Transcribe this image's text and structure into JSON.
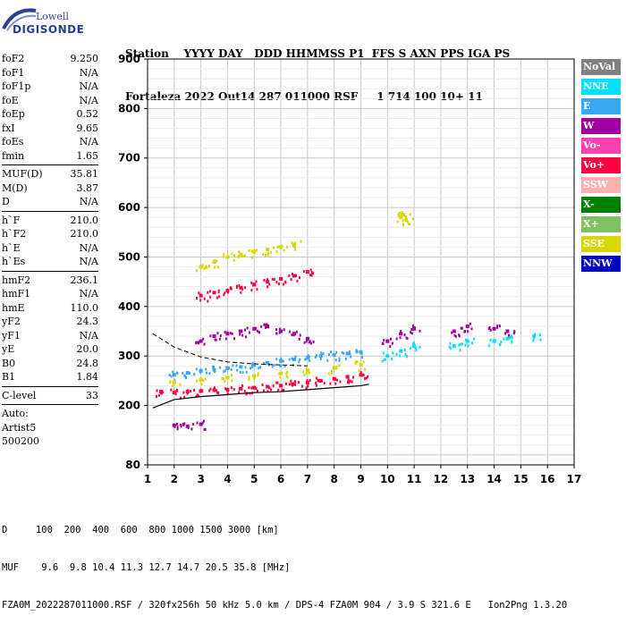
{
  "logo": {
    "line1": "Lowell",
    "line2": "DIGISONDE"
  },
  "header": {
    "labels": "Station    YYYY DAY   DDD HHMMSS P1  FFS S AXN PPS IGA PS",
    "values": "Fortaleza 2022 Out14 287 011000 RSF     1 714 100 10+ 11"
  },
  "params": {
    "group1": [
      {
        "label": "foF2",
        "value": "9.250"
      },
      {
        "label": "foF1",
        "value": "N/A"
      },
      {
        "label": "foF1p",
        "value": "N/A"
      },
      {
        "label": "foE",
        "value": "N/A"
      },
      {
        "label": "foEp",
        "value": "0.52"
      },
      {
        "label": "fxI",
        "value": "9.65"
      },
      {
        "label": "foEs",
        "value": "N/A"
      },
      {
        "label": "fmin",
        "value": "1.65"
      }
    ],
    "group2": [
      {
        "label": "MUF(D)",
        "value": "35.81"
      },
      {
        "label": "M(D)",
        "value": "3.87"
      },
      {
        "label": "D",
        "value": "N/A"
      }
    ],
    "group3": [
      {
        "label": "h`F",
        "value": "210.0"
      },
      {
        "label": "h`F2",
        "value": "210.0"
      },
      {
        "label": "h`E",
        "value": "N/A"
      },
      {
        "label": "h`Es",
        "value": "N/A"
      }
    ],
    "group4": [
      {
        "label": "hmF2",
        "value": "236.1"
      },
      {
        "label": "hmF1",
        "value": "N/A"
      },
      {
        "label": "hmE",
        "value": "110.0"
      },
      {
        "label": "yF2",
        "value": "24.3"
      },
      {
        "label": "yF1",
        "value": "N/A"
      },
      {
        "label": "yE",
        "value": "20.0"
      },
      {
        "label": "B0",
        "value": "24.8"
      },
      {
        "label": "B1",
        "value": "1.84"
      }
    ],
    "group5": [
      {
        "label": "C-level",
        "value": "33"
      }
    ],
    "auto_label": "Auto:",
    "scaler": "Artist5",
    "code": "500200"
  },
  "legend": [
    {
      "label": "NoVal",
      "color": "#808080"
    },
    {
      "label": "NNE",
      "color": "#00e0ff"
    },
    {
      "label": "E",
      "color": "#3aa8f0"
    },
    {
      "label": "W",
      "color": "#a000a0"
    },
    {
      "label": "Vo-",
      "color": "#ff40b0"
    },
    {
      "label": "Vo+",
      "color": "#ff0040"
    },
    {
      "label": "SSW",
      "color": "#ffb0b0"
    },
    {
      "label": "X-",
      "color": "#008000"
    },
    {
      "label": "X+",
      "color": "#80c060"
    },
    {
      "label": "SSE",
      "color": "#d8d800"
    },
    {
      "label": "NNW",
      "color": "#0000c0"
    }
  ],
  "footer": {
    "line1": "D     100  200  400  600  800 1000 1500 3000 [km]",
    "line2": "MUF    9.6  9.8 10.4 11.3 12.7 14.7 20.5 35.8 [MHz]",
    "line3": "FZA0M_2022287011000.RSF / 320fx256h 50 kHz 5.0 km / DPS-4 FZA0M 904 / 3.9 S 321.6 E   Ion2Png 1.3.20"
  },
  "chart_data": {
    "type": "scatter",
    "title": "",
    "xlabel": "",
    "ylabel": "",
    "xlim": [
      1,
      17
    ],
    "ylim": [
      80,
      900
    ],
    "xticks": [
      1,
      2,
      3,
      4,
      5,
      6,
      7,
      8,
      9,
      10,
      11,
      12,
      13,
      14,
      15,
      16,
      17
    ],
    "yticks": [
      80,
      200,
      300,
      400,
      500,
      600,
      700,
      800,
      900
    ],
    "grid": true,
    "series": [
      {
        "color": "#ff0040",
        "points": [
          [
            1.5,
            228
          ],
          [
            2.0,
            226
          ],
          [
            2.5,
            228
          ],
          [
            3.0,
            229
          ],
          [
            3.5,
            231
          ],
          [
            4.0,
            232
          ],
          [
            4.5,
            234
          ],
          [
            5.0,
            236
          ],
          [
            5.5,
            238
          ],
          [
            6.0,
            240
          ],
          [
            6.5,
            243
          ],
          [
            7.0,
            246
          ],
          [
            7.5,
            250
          ],
          [
            8.0,
            254
          ],
          [
            8.5,
            258
          ],
          [
            9.0,
            262
          ]
        ]
      },
      {
        "color": "#3aa8f0",
        "points": [
          [
            2.0,
            262
          ],
          [
            2.5,
            266
          ],
          [
            3.0,
            270
          ],
          [
            3.5,
            272
          ],
          [
            4.0,
            275
          ],
          [
            4.5,
            278
          ],
          [
            5.0,
            282
          ],
          [
            5.5,
            286
          ],
          [
            6.0,
            290
          ],
          [
            6.5,
            293
          ],
          [
            7.0,
            296
          ],
          [
            7.5,
            300
          ],
          [
            8.0,
            302
          ],
          [
            8.5,
            305
          ],
          [
            9.0,
            308
          ]
        ]
      },
      {
        "color": "#d8d800",
        "points": [
          [
            2.0,
            248
          ],
          [
            3.0,
            252
          ],
          [
            4.0,
            256
          ],
          [
            5.0,
            260
          ],
          [
            6.0,
            265
          ],
          [
            7.0,
            270
          ],
          [
            8.0,
            276
          ],
          [
            9.0,
            282
          ]
        ]
      },
      {
        "color": "#a000a0",
        "points": [
          [
            3.0,
            330
          ],
          [
            3.5,
            340
          ],
          [
            4.0,
            345
          ],
          [
            4.5,
            350
          ],
          [
            5.0,
            355
          ],
          [
            5.5,
            360
          ],
          [
            6.0,
            350
          ],
          [
            6.5,
            345
          ],
          [
            7.0,
            335
          ]
        ]
      },
      {
        "color": "#ff0040",
        "points": [
          [
            3.0,
            422
          ],
          [
            3.5,
            428
          ],
          [
            4.0,
            432
          ],
          [
            4.5,
            438
          ],
          [
            5.0,
            444
          ],
          [
            5.5,
            450
          ],
          [
            6.0,
            456
          ],
          [
            6.5,
            462
          ],
          [
            7.0,
            470
          ]
        ]
      },
      {
        "color": "#d8d800",
        "points": [
          [
            3.0,
            480
          ],
          [
            3.5,
            490
          ],
          [
            4.0,
            500
          ],
          [
            4.5,
            505
          ],
          [
            5.0,
            510
          ],
          [
            5.5,
            515
          ],
          [
            6.0,
            520
          ],
          [
            6.5,
            525
          ]
        ]
      },
      {
        "color": "#a000a0",
        "points": [
          [
            10.0,
            330
          ],
          [
            10.5,
            345
          ],
          [
            11.0,
            355
          ],
          [
            12.5,
            350
          ],
          [
            13.0,
            360
          ],
          [
            14.0,
            355
          ],
          [
            14.5,
            350
          ]
        ]
      },
      {
        "color": "#00e0ff",
        "points": [
          [
            10.0,
            300
          ],
          [
            10.5,
            310
          ],
          [
            11.0,
            320
          ],
          [
            12.5,
            320
          ],
          [
            13.0,
            330
          ],
          [
            14.0,
            330
          ],
          [
            14.5,
            335
          ],
          [
            15.5,
            340
          ]
        ]
      },
      {
        "color": "#d8d800",
        "points": [
          [
            10.5,
            580
          ],
          [
            10.6,
            585
          ],
          [
            10.7,
            575
          ]
        ]
      },
      {
        "color": "#a000a0",
        "points": [
          [
            2.0,
            160
          ],
          [
            2.5,
            158
          ],
          [
            3.0,
            162
          ]
        ]
      }
    ],
    "profile_line": [
      [
        1.2,
        195
      ],
      [
        2.0,
        212
      ],
      [
        3.0,
        218
      ],
      [
        4.0,
        222
      ],
      [
        5.0,
        226
      ],
      [
        6.0,
        228
      ],
      [
        7.0,
        232
      ],
      [
        8.0,
        236
      ],
      [
        9.0,
        240
      ],
      [
        9.3,
        243
      ]
    ],
    "dashed_line": [
      [
        1.2,
        345
      ],
      [
        2.0,
        318
      ],
      [
        3.0,
        298
      ],
      [
        4.0,
        288
      ],
      [
        5.0,
        284
      ],
      [
        6.0,
        282
      ],
      [
        7.0,
        280
      ]
    ]
  }
}
